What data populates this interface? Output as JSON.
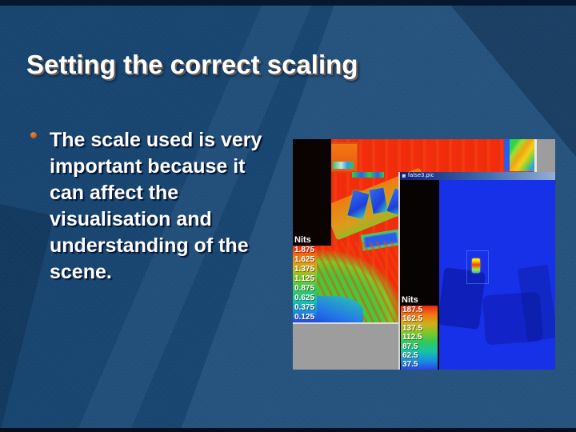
{
  "slide": {
    "title": "Setting the correct scaling",
    "bullet_marker": "",
    "bullet_lines": [
      "The scale used is very",
      "important because it",
      "can affect the",
      "visualisation and",
      "understanding of the",
      "scene."
    ]
  },
  "screenshot": {
    "back_window": {
      "legend_title": "Nits",
      "legend_values": [
        "1.875",
        "1.625",
        "1.375",
        "1.125",
        "0.875",
        "0.625",
        "0.375",
        "0.125"
      ]
    },
    "front_window": {
      "title": "false3.pic",
      "legend_title": "Nits",
      "legend_values": [
        "187.5",
        "162.5",
        "137.5",
        "112.5",
        "87.5",
        "62.5",
        "37.5"
      ]
    },
    "colorbar_gradient": [
      "#ee2410",
      "#f07814",
      "#ccb01c",
      "#7cc828",
      "#30c85c",
      "#18c4a4",
      "#1890dc",
      "#2846e8"
    ]
  },
  "colors": {
    "slide_bg": "#17456f",
    "edge_strip": "#06182f",
    "bullet_accent": "#c05a16",
    "scene_red": "#f22c0d",
    "scene_blue": "#1731e8",
    "desktop_gray": "#9d9d9d"
  }
}
